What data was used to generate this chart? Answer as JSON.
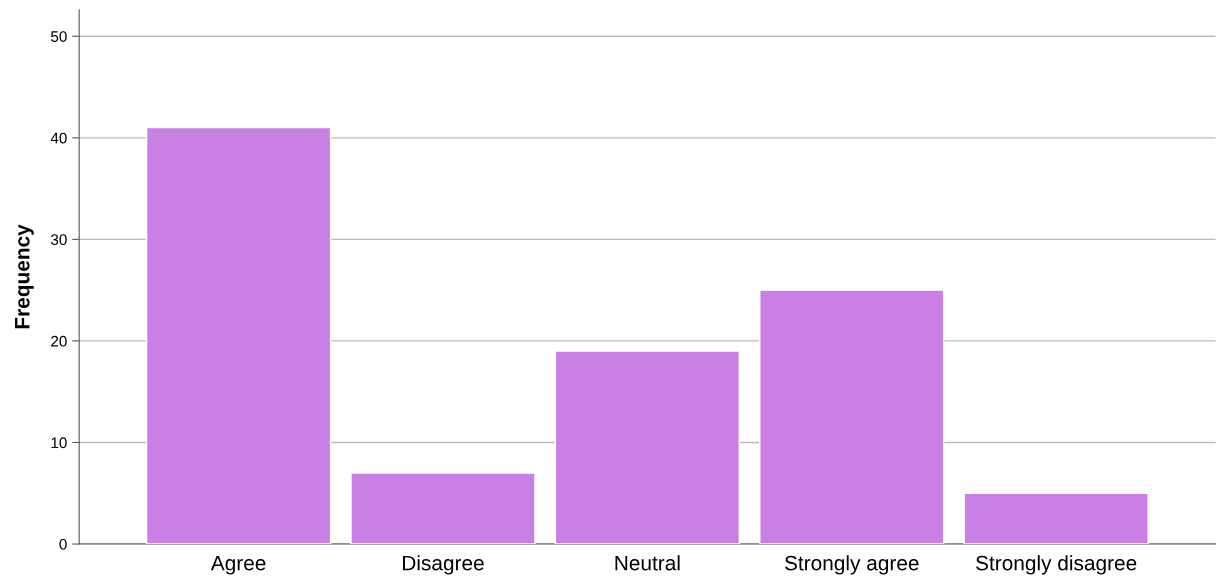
{
  "chart_data": {
    "type": "bar",
    "ylabel": "Frequency",
    "categories": [
      "Agree",
      "Disagree",
      "Neutral",
      "Strongly agree",
      "Strongly disagree"
    ],
    "values": [
      41,
      7,
      19,
      25,
      5
    ],
    "color": "#c97fe4",
    "ylim": [
      0,
      52.6
    ],
    "yticks": [
      0,
      10,
      20,
      30,
      40,
      50
    ],
    "grid": "y"
  }
}
